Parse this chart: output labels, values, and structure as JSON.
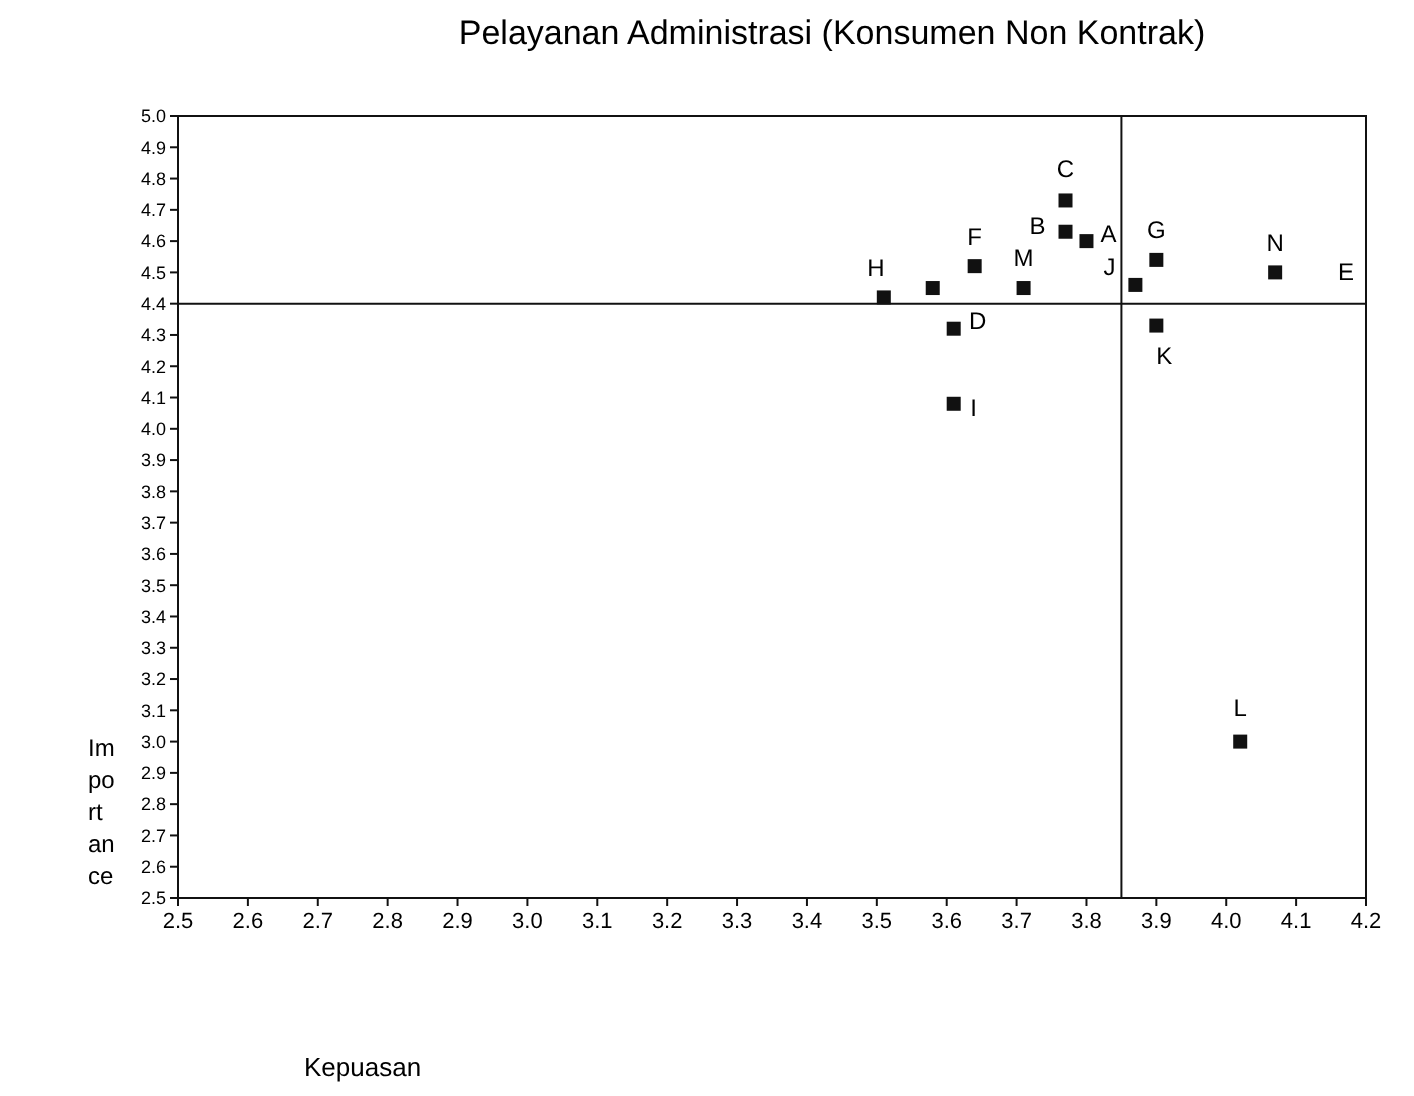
{
  "chart_data": {
    "type": "scatter",
    "title": "Pelayanan Administrasi (Konsumen Non Kontrak)",
    "xlabel": "Kepuasan",
    "ylabel": "Importance",
    "x": [
      3.51,
      3.58,
      3.64,
      3.71,
      3.61,
      3.61,
      3.77,
      3.77,
      3.8,
      3.9,
      3.87,
      3.9,
      4.07,
      4.02
    ],
    "values": [
      4.42,
      4.45,
      4.52,
      4.45,
      4.32,
      4.08,
      4.73,
      4.63,
      4.6,
      4.54,
      4.46,
      4.33,
      4.5,
      3.0
    ],
    "color": "#111111",
    "marker": "square",
    "grid": false,
    "xlim": [
      2.5,
      4.2
    ],
    "ylim": [
      2.5,
      5.0
    ],
    "xticks": [
      2.5,
      2.6,
      2.7,
      2.8,
      2.9,
      {
        "value": 3,
        "label": "3.0"
      },
      3.1,
      3.2,
      3.3,
      3.4,
      3.5,
      3.6,
      3.7,
      3.8,
      3.9,
      {
        "value": 4,
        "label": "4.0"
      },
      4.1,
      4.2
    ],
    "yticks": [
      2.5,
      2.6,
      2.7,
      2.8,
      2.9,
      {
        "value": 3,
        "label": "3.0"
      },
      3.1,
      3.2,
      3.3,
      3.4,
      3.5,
      3.6,
      3.7,
      3.8,
      3.9,
      {
        "value": 4,
        "label": "4.0"
      },
      4.1,
      4.2,
      4.3,
      4.4,
      4.5,
      4.6,
      4.7,
      4.8,
      4.9,
      {
        "value": 5,
        "label": "5.0"
      }
    ],
    "ref_lines": [
      {
        "axis": "x",
        "value": 3.85,
        "color": "#111111"
      },
      {
        "axis": "y",
        "value": 4.4,
        "color": "#111111"
      }
    ],
    "annotations": [
      {
        "text": "H",
        "x": 3.51,
        "y": 4.42
      },
      {
        "text": "F",
        "x": 3.64,
        "y": 4.52
      },
      {
        "text": "M",
        "x": 3.71,
        "y": 4.45
      },
      {
        "text": "D",
        "x": 3.61,
        "y": 4.32
      },
      {
        "text": "I",
        "x": 3.61,
        "y": 4.08
      },
      {
        "text": "C",
        "x": 3.77,
        "y": 4.73
      },
      {
        "text": "B",
        "x": 3.77,
        "y": 4.63
      },
      {
        "text": "A",
        "x": 3.8,
        "y": 4.6
      },
      {
        "text": "G",
        "x": 3.9,
        "y": 4.54
      },
      {
        "text": "J",
        "x": 3.87,
        "y": 4.46
      },
      {
        "text": "K",
        "x": 3.9,
        "y": 4.33
      },
      {
        "text": "N",
        "x": 4.07,
        "y": 4.5
      },
      {
        "text": "L",
        "x": 4.02,
        "y": 3.0
      },
      "E"
    ]
  }
}
